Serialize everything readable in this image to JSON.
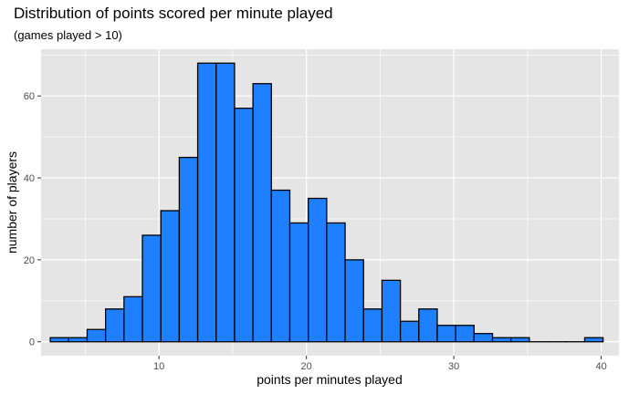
{
  "chart_data": {
    "type": "bar",
    "title": "Distribution of points scored per minute played",
    "subtitle": "(games played > 10)",
    "xlabel": "points per minutes played",
    "ylabel": "number of players",
    "xlim": [
      2,
      41.2
    ],
    "ylim": [
      -3.4,
      71.4
    ],
    "x_ticks": [
      10,
      20,
      30,
      40
    ],
    "y_ticks": [
      0,
      20,
      40,
      60
    ],
    "bin_width": 1.25,
    "bin_start": 3.25,
    "values": [
      1,
      1,
      3,
      8,
      11,
      26,
      32,
      45,
      68,
      68,
      57,
      63,
      37,
      29,
      35,
      29,
      20,
      8,
      15,
      5,
      8,
      4,
      4,
      2,
      1,
      1,
      0,
      0,
      0,
      1
    ],
    "grid": true,
    "legend": "none",
    "colors": {
      "bar_fill": "#1e7fff",
      "bar_stroke": "#000000",
      "panel": "#e5e5e5",
      "grid": "#ffffff"
    }
  }
}
